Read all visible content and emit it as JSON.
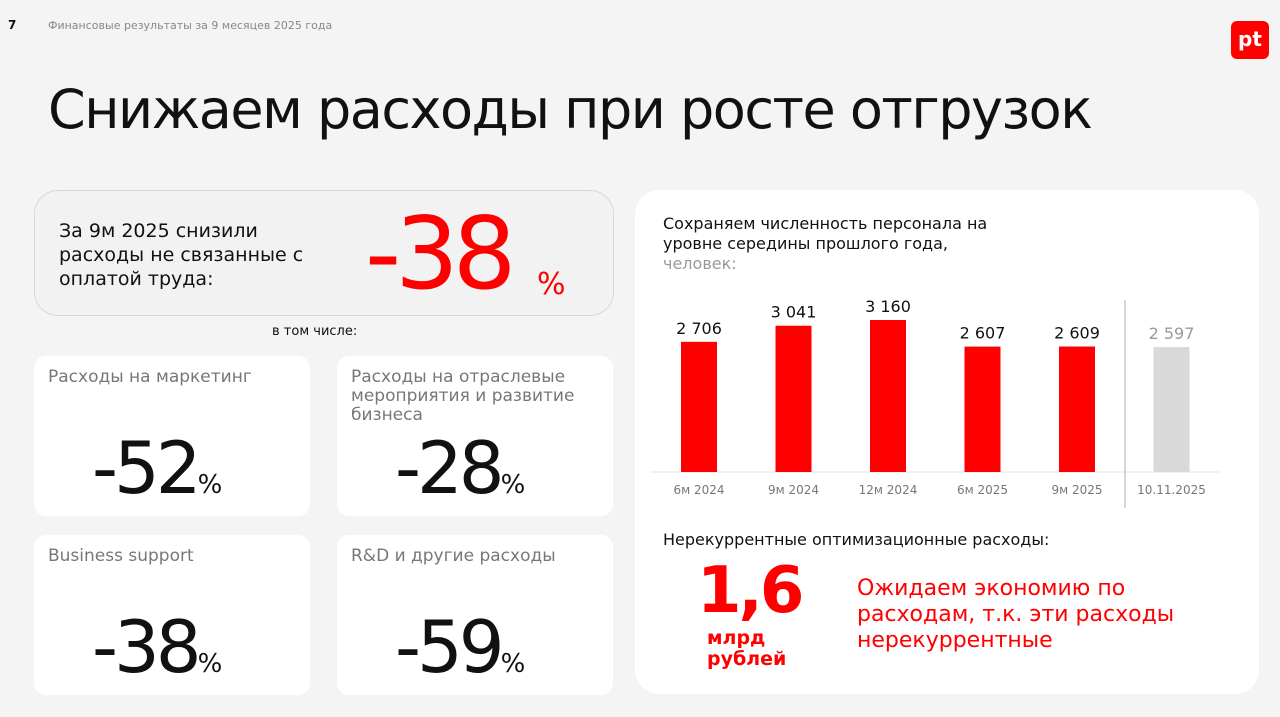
{
  "header": {
    "page_number": "7",
    "subtitle": "Финансовые результаты за 9 месяцев 2025 года",
    "logo_text": "pt"
  },
  "title": "Снижаем расходы при росте отгрузок",
  "summary": {
    "text": "За 9м 2025 снизили расходы не связанные с оплатой труда:",
    "value": "-38",
    "unit": "%"
  },
  "including_label": "в том числе:",
  "cards": [
    {
      "label": "Расходы на маркетинг",
      "value": "-52",
      "unit": "%"
    },
    {
      "label": "Расходы на отраслевые мероприятия и развитие бизнеса",
      "value": "-28",
      "unit": "%"
    },
    {
      "label": "Business support",
      "value": "-38",
      "unit": "%"
    },
    {
      "label": "R&D и другие расходы",
      "value": "-59",
      "unit": "%"
    }
  ],
  "headcount": {
    "title": "Сохраняем численность персонала на уровне середины прошлого года,",
    "unit": "человек:"
  },
  "chart_data": {
    "type": "bar",
    "categories": [
      "6м 2024",
      "9м 2024",
      "12м 2024",
      "6м 2025",
      "9м 2025",
      "10.11.2025"
    ],
    "values": [
      2706,
      3041,
      3160,
      2607,
      2609,
      2597
    ],
    "data_labels": [
      "2 706",
      "3 041",
      "3 160",
      "2 607",
      "2 609",
      "2 597"
    ],
    "colors": [
      "#ff0000",
      "#ff0000",
      "#ff0000",
      "#ff0000",
      "#ff0000",
      "#d9d9d9"
    ],
    "ylim": [
      0,
      3160
    ],
    "grid": false
  },
  "nonrecurring": {
    "title": "Нерекуррентные оптимизационные расходы:",
    "value": "1,6",
    "unit": "млрд рублей",
    "note": "Ожидаем экономию по расходам, т.к. эти расходы нерекуррентные"
  },
  "colors": {
    "accent": "#ff0000",
    "background": "#f4f4f4"
  }
}
